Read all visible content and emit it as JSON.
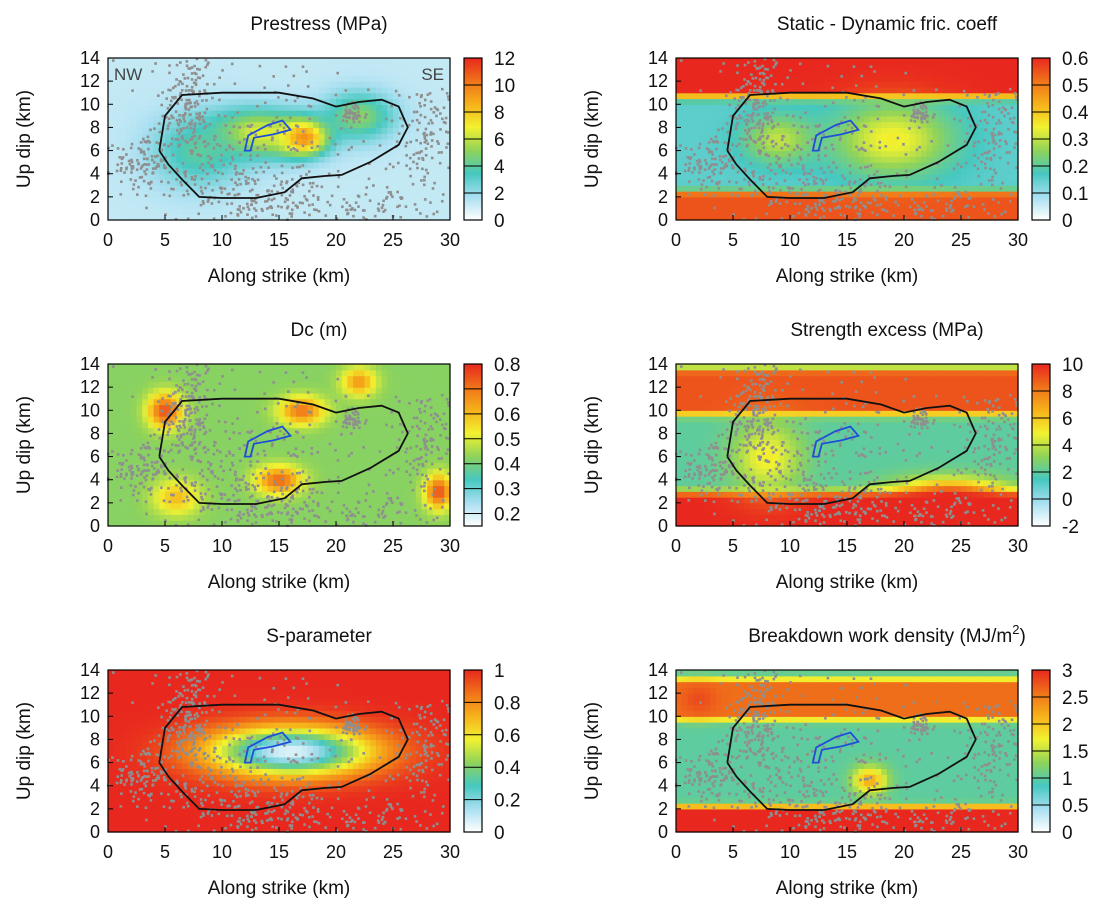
{
  "figure": {
    "shared": {
      "xlabel": "Along strike (km)",
      "ylabel": "Up dip (km)",
      "x_ticks": [
        0,
        5,
        10,
        15,
        20,
        25,
        30
      ],
      "y_ticks": [
        0,
        2,
        4,
        6,
        8,
        10,
        12,
        14
      ],
      "xlim": [
        0,
        30
      ],
      "ylim": [
        0,
        14
      ],
      "colormap": [
        "#ffffff",
        "#a8dff0",
        "#46c8c0",
        "#8fd35a",
        "#f2f230",
        "#f6b21a",
        "#f0731a",
        "#e8281e"
      ],
      "scatter_color": "#8f8f8f",
      "contour_color": "#111111",
      "hypocenter_color": "#1f4ed8"
    }
  },
  "chart_data": [
    {
      "type": "heatmap",
      "title": "Prestress (MPa)",
      "corner_labels": [
        "NW",
        "SE"
      ],
      "colorbar": {
        "range": [
          0,
          12
        ],
        "ticks": [
          0,
          2,
          4,
          6,
          8,
          10,
          12
        ]
      },
      "hotspots": [
        {
          "x": 17,
          "y": 7.2,
          "value": 11,
          "sx": 2.2,
          "sy": 1.5
        },
        {
          "x": 13,
          "y": 7.5,
          "value": 7,
          "sx": 4,
          "sy": 2
        },
        {
          "x": 22,
          "y": 9,
          "value": 5,
          "sx": 3,
          "sy": 2
        },
        {
          "x": 8,
          "y": 6,
          "value": 4,
          "sx": 4,
          "sy": 3
        }
      ],
      "base_value": 1.2
    },
    {
      "type": "heatmap",
      "title": "Static - Dynamic fric. coeff",
      "colorbar": {
        "range": [
          0,
          0.6
        ],
        "ticks": [
          0,
          0.1,
          0.2,
          0.3,
          0.4,
          0.5,
          0.6
        ]
      },
      "bands": [
        {
          "y0": 11.5,
          "y1": 14,
          "value": 0.6
        },
        {
          "y0": 0,
          "y1": 1.8,
          "value": 0.55
        }
      ],
      "hotspots": [
        {
          "x": 19,
          "y": 7,
          "value": 0.35,
          "sx": 5,
          "sy": 3
        },
        {
          "x": 9,
          "y": 7,
          "value": 0.3,
          "sx": 3,
          "sy": 2
        }
      ],
      "base_value": 0.15
    },
    {
      "type": "heatmap",
      "title": "Dc (m)",
      "colorbar": {
        "range": [
          0.15,
          0.8
        ],
        "ticks": [
          0.2,
          0.3,
          0.4,
          0.5,
          0.6,
          0.7,
          0.8
        ]
      },
      "hotspots": [
        {
          "x": 5,
          "y": 10,
          "value": 0.75,
          "sx": 1.5,
          "sy": 1.5
        },
        {
          "x": 17,
          "y": 10,
          "value": 0.7,
          "sx": 2,
          "sy": 1.2
        },
        {
          "x": 22,
          "y": 12.5,
          "value": 0.65,
          "sx": 1.5,
          "sy": 1.2
        },
        {
          "x": 15,
          "y": 4,
          "value": 0.72,
          "sx": 2,
          "sy": 1.2
        },
        {
          "x": 29,
          "y": 3,
          "value": 0.75,
          "sx": 1.2,
          "sy": 1.5
        },
        {
          "x": 6,
          "y": 2.5,
          "value": 0.6,
          "sx": 2,
          "sy": 1.5
        }
      ],
      "base_value": 0.42
    },
    {
      "type": "heatmap",
      "title": "Strength excess (MPa)",
      "colorbar": {
        "range": [
          -2,
          10
        ],
        "ticks": [
          -2,
          0,
          2,
          4,
          6,
          8,
          10
        ]
      },
      "bands": [
        {
          "y0": 10.5,
          "y1": 12.8,
          "value": 9
        },
        {
          "y0": 0,
          "y1": 2.2,
          "value": 10
        }
      ],
      "hotspots": [
        {
          "x": 24,
          "y": 2.5,
          "value": 10,
          "sx": 5,
          "sy": 1.5
        },
        {
          "x": 8,
          "y": 6,
          "value": 5,
          "sx": 3,
          "sy": 3
        }
      ],
      "base_value": 2
    },
    {
      "type": "heatmap",
      "title": "S-parameter",
      "colorbar": {
        "range": [
          0,
          1
        ],
        "ticks": [
          0,
          0.2,
          0.4,
          0.6,
          0.8,
          1
        ]
      },
      "inverse_region": {
        "cx": 16,
        "cy": 7,
        "rx": 9.5,
        "ry": 2.8,
        "min": 0.05
      },
      "base_value": 1
    },
    {
      "type": "heatmap",
      "title": "Breakdown work density (MJ/m",
      "title_sup": "2",
      "title_end": ")",
      "colorbar": {
        "range": [
          0,
          3
        ],
        "ticks": [
          0,
          0.5,
          1,
          1.5,
          2,
          2.5,
          3
        ]
      },
      "bands": [
        {
          "y0": 10.5,
          "y1": 12.5,
          "value": 2.6
        },
        {
          "y0": 0,
          "y1": 1.6,
          "value": 3
        }
      ],
      "hotspots": [
        {
          "x": 2,
          "y": 11.5,
          "value": 2.8,
          "sx": 1.5,
          "sy": 1.2
        },
        {
          "x": 17,
          "y": 4.5,
          "value": 2.2,
          "sx": 1.5,
          "sy": 1.2
        }
      ],
      "base_value": 1
    }
  ]
}
